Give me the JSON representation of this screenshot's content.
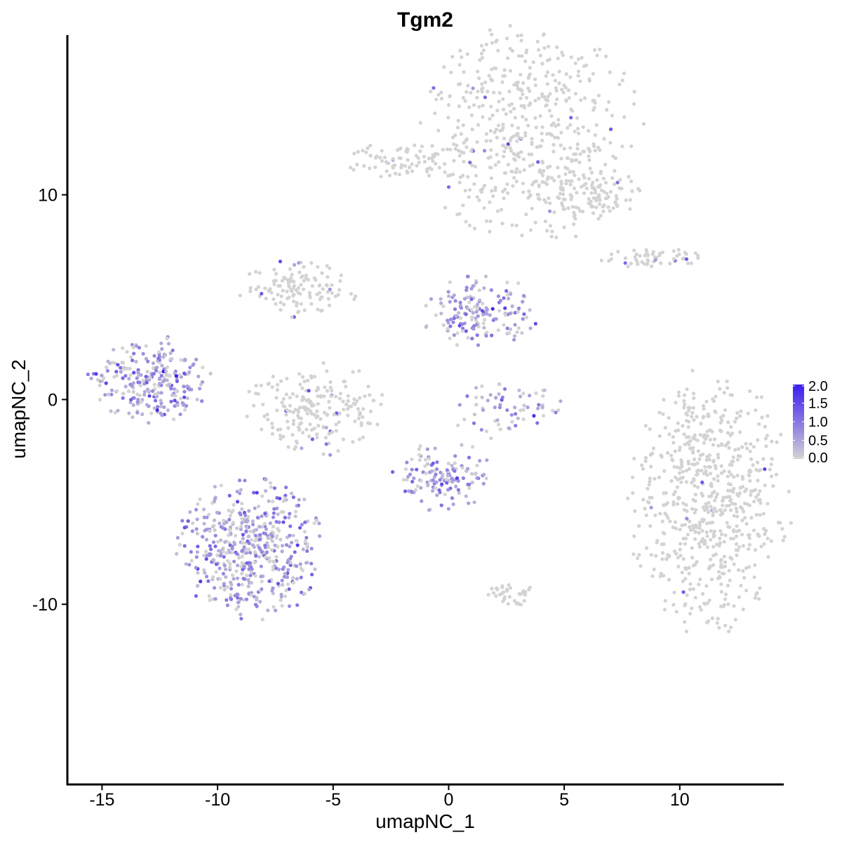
{
  "chart_data": {
    "type": "scatter",
    "title": "Tgm2",
    "xlabel": "umapNC_1",
    "ylabel": "umapNC_2",
    "xlim": [
      -16.5,
      14.5
    ],
    "ylim": [
      -18.8,
      17.8
    ],
    "x_ticks": [
      -15,
      -10,
      -5,
      0,
      5,
      10
    ],
    "x_tick_labels": [
      "-15",
      "-10",
      "-5",
      "0",
      "5",
      "10"
    ],
    "y_ticks": [
      -10,
      0,
      10
    ],
    "y_tick_labels": [
      "-10",
      "0",
      "10"
    ],
    "grid": false,
    "legend": {
      "position": "right",
      "min": 0.0,
      "max": 2.0,
      "ticks": [
        2.0,
        1.5,
        1.0,
        0.5,
        0.0
      ],
      "tick_labels": [
        "2.0",
        "1.5",
        "1.0",
        "0.5",
        "0.0"
      ],
      "low_color": "#D3D3D3",
      "high_color": "#3A1CF0"
    },
    "clusters": [
      {
        "region": "top-right (upper)",
        "cx": 3.5,
        "cy": 13.0,
        "rx": 2.5,
        "ry": 2.8,
        "n": 500,
        "expr": 0.02
      },
      {
        "region": "top-right tail",
        "cx": 5.8,
        "cy": 10.1,
        "rx": 1.3,
        "ry": 0.7,
        "n": 110,
        "expr": 0.03
      },
      {
        "region": "top arm",
        "cx": -1.8,
        "cy": 11.7,
        "rx": 1.4,
        "ry": 0.5,
        "n": 80,
        "expr": 0.01
      },
      {
        "region": "right island",
        "cx": 8.9,
        "cy": 6.9,
        "rx": 1.4,
        "ry": 0.3,
        "n": 55,
        "expr": 0.05
      },
      {
        "region": "large right cluster",
        "cx": 11.3,
        "cy": -5.0,
        "rx": 1.8,
        "ry": 3.3,
        "n": 650,
        "expr": 0.01
      },
      {
        "region": "left island",
        "cx": -13.0,
        "cy": 1.0,
        "rx": 1.4,
        "ry": 1.1,
        "n": 260,
        "expr": 0.6
      },
      {
        "region": "center left blob",
        "cx": -5.7,
        "cy": -0.5,
        "rx": 1.6,
        "ry": 1.2,
        "n": 200,
        "expr": 0.05
      },
      {
        "region": "center upper-left",
        "cx": -6.5,
        "cy": 5.4,
        "rx": 1.4,
        "ry": 0.7,
        "n": 120,
        "expr": 0.04
      },
      {
        "region": "center right",
        "cx": 1.3,
        "cy": 4.2,
        "rx": 1.3,
        "ry": 1.0,
        "n": 160,
        "expr": 0.55
      },
      {
        "region": "small arc",
        "cx": 2.5,
        "cy": -0.6,
        "rx": 1.3,
        "ry": 0.7,
        "n": 65,
        "expr": 0.5
      },
      {
        "region": "lower-middle",
        "cx": -0.3,
        "cy": -3.7,
        "rx": 1.1,
        "ry": 0.9,
        "n": 130,
        "expr": 0.6
      },
      {
        "region": "lower-left large",
        "cx": -8.6,
        "cy": -7.3,
        "rx": 1.6,
        "ry": 1.8,
        "n": 500,
        "expr": 0.55
      },
      {
        "region": "bottom-center",
        "cx": 2.6,
        "cy": -9.5,
        "rx": 0.6,
        "ry": 0.3,
        "n": 35,
        "expr": 0.02
      }
    ]
  }
}
